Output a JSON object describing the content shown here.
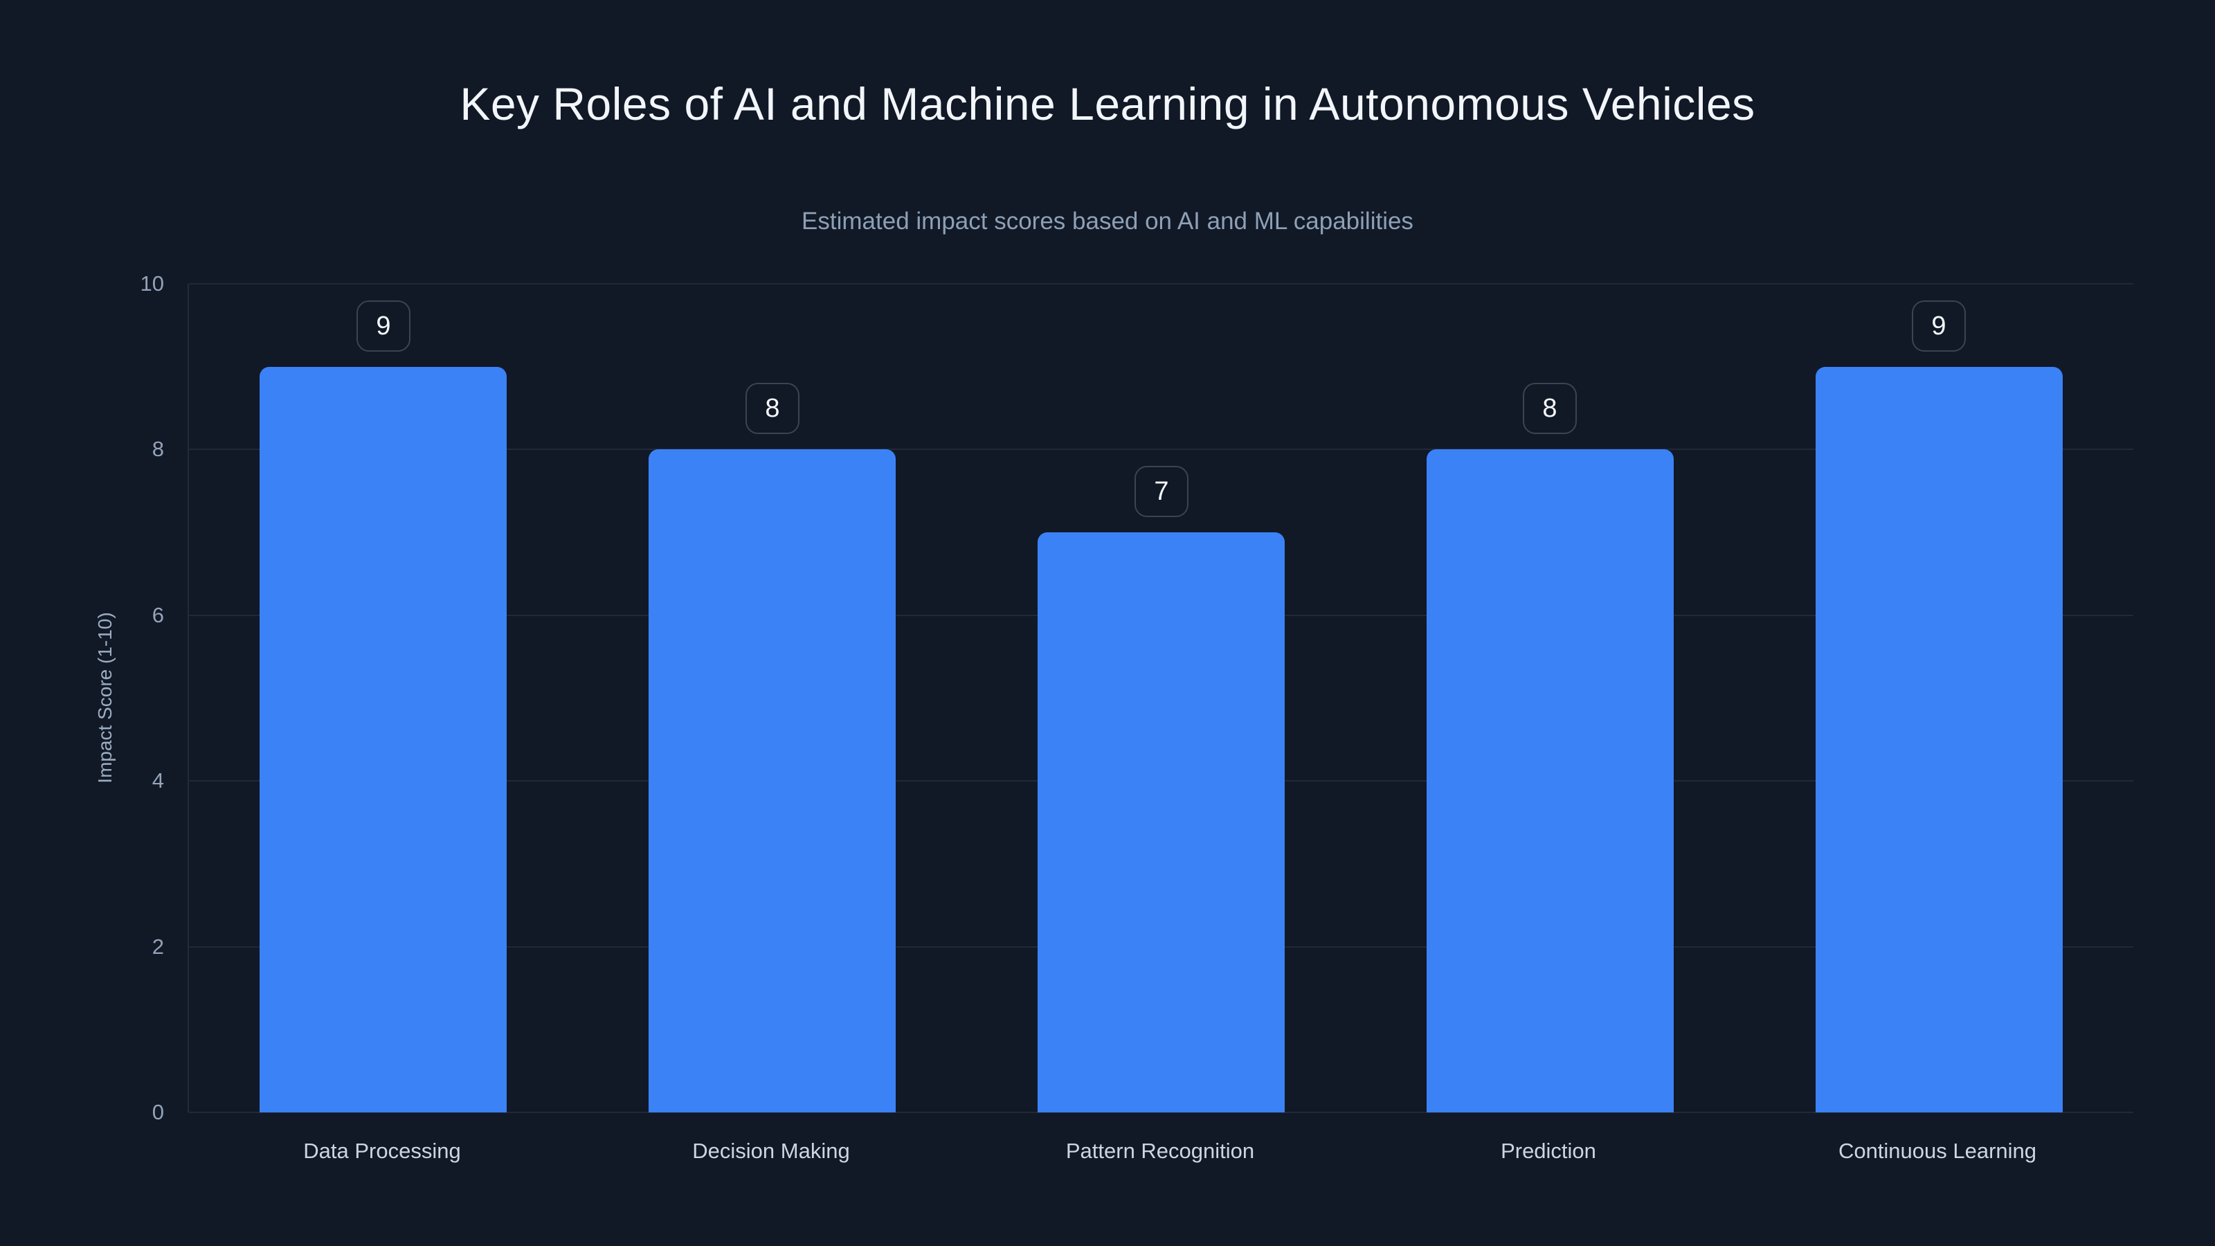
{
  "header": {
    "title": "Key Roles of AI and Machine Learning in Autonomous Vehicles",
    "subtitle": "Estimated impact scores based on AI and ML capabilities"
  },
  "chart_data": {
    "type": "bar",
    "title": "Key Roles of AI and Machine Learning in Autonomous Vehicles",
    "subtitle": "Estimated impact scores based on AI and ML capabilities",
    "categories": [
      "Data Processing",
      "Decision Making",
      "Pattern Recognition",
      "Prediction",
      "Continuous Learning"
    ],
    "values": [
      9,
      8,
      7,
      8,
      9
    ],
    "data_labels": [
      "9",
      "8",
      "7",
      "8",
      "9"
    ],
    "xlabel": "",
    "ylabel": "Impact Score (1-10)",
    "ylim": [
      0,
      10
    ],
    "yticks": [
      0,
      2,
      4,
      6,
      8,
      10
    ],
    "grid": true,
    "legend": "none",
    "colors": {
      "background": "#111826",
      "bar": "#3b82f6",
      "title_text": "#f2f6fa",
      "subtitle_text": "#8da0b6",
      "tick_text": "#94a3b8",
      "category_text": "#ccd6e0",
      "gridline": "rgba(148,163,184,0.13)"
    }
  }
}
